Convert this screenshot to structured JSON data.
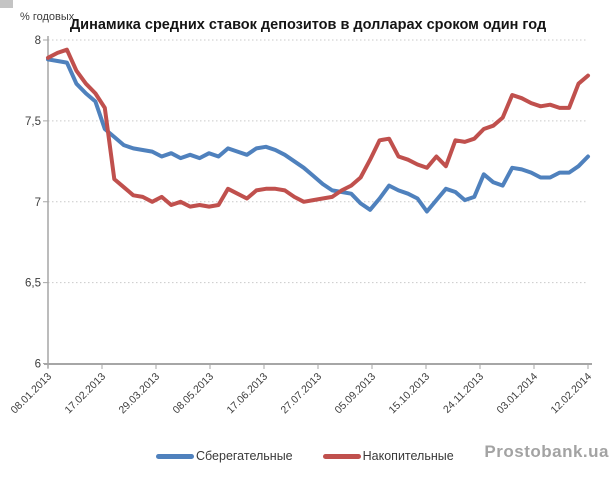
{
  "header": {
    "title": "Динамика средних ставок депозитов в долларах сроком один год",
    "y_axis_unit": "% годовых"
  },
  "watermark": "Prostobank.ua",
  "chart_data": {
    "type": "line",
    "title": "Динамика средних ставок депозитов в долларах сроком один год",
    "ylabel": "% годовых",
    "xlabel": "",
    "ylim": [
      6,
      8
    ],
    "grid": "horizontal-dotted",
    "legend_position": "bottom",
    "x_tick_labels": [
      "08.01.2013",
      "17.02.2013",
      "29.03.2013",
      "08.05.2013",
      "17.06.2013",
      "27.07.2013",
      "05.09.2013",
      "15.10.2013",
      "24.11.2013",
      "03.01.2014",
      "12.02.2014"
    ],
    "y_ticks": [
      {
        "value": 8,
        "label": "8"
      },
      {
        "value": 7.5,
        "label": "7,5"
      },
      {
        "value": 7,
        "label": "7"
      },
      {
        "value": 6.5,
        "label": "6,5"
      },
      {
        "value": 6,
        "label": "6"
      }
    ],
    "x_description": "weekly observations from 08.01.2013 to 12.02.2014",
    "series": [
      {
        "name": "Сберегательные",
        "color": "#4f81bd",
        "values": [
          7.88,
          7.87,
          7.86,
          7.73,
          7.67,
          7.62,
          7.45,
          7.4,
          7.35,
          7.33,
          7.32,
          7.31,
          7.28,
          7.3,
          7.27,
          7.29,
          7.27,
          7.3,
          7.28,
          7.33,
          7.31,
          7.29,
          7.33,
          7.34,
          7.32,
          7.29,
          7.25,
          7.21,
          7.16,
          7.11,
          7.07,
          7.06,
          7.05,
          6.99,
          6.95,
          7.02,
          7.1,
          7.07,
          7.05,
          7.02,
          6.94,
          7.01,
          7.08,
          7.06,
          7.01,
          7.03,
          7.17,
          7.12,
          7.1,
          7.21,
          7.2,
          7.18,
          7.15,
          7.15,
          7.18,
          7.18,
          7.22,
          7.28
        ]
      },
      {
        "name": "Накопительные",
        "color": "#c0504d",
        "values": [
          7.89,
          7.92,
          7.94,
          7.81,
          7.73,
          7.67,
          7.58,
          7.14,
          7.09,
          7.04,
          7.03,
          7.0,
          7.03,
          6.98,
          7.0,
          6.97,
          6.98,
          6.97,
          6.98,
          7.08,
          7.05,
          7.02,
          7.07,
          7.08,
          7.08,
          7.07,
          7.03,
          7.0,
          7.01,
          7.02,
          7.03,
          7.07,
          7.1,
          7.15,
          7.26,
          7.38,
          7.39,
          7.28,
          7.26,
          7.23,
          7.21,
          7.28,
          7.22,
          7.38,
          7.37,
          7.39,
          7.45,
          7.47,
          7.52,
          7.66,
          7.64,
          7.61,
          7.59,
          7.6,
          7.58,
          7.58,
          7.73,
          7.78
        ]
      }
    ],
    "axis_color": "#a6a6a6",
    "gridline_color": "#c9c9c9",
    "tick_label_color": "#3d3d3d"
  }
}
